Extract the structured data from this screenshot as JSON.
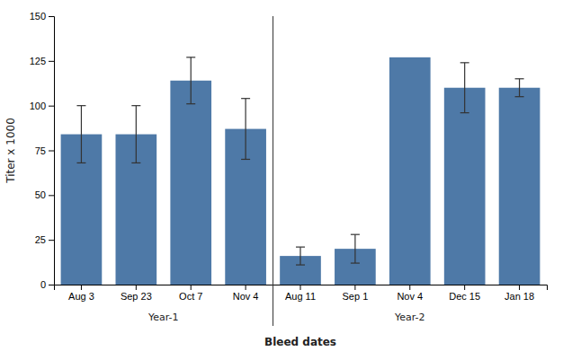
{
  "chart_data": {
    "type": "bar",
    "categories": [
      "Aug 3",
      "Sep 23",
      "Oct 7",
      "Nov 4",
      "Aug 11",
      "Sep 1",
      "Nov 4",
      "Dec 15",
      "Jan 18"
    ],
    "values": [
      84,
      84,
      114,
      87,
      16,
      20,
      127,
      110,
      110
    ],
    "errors": [
      16,
      16,
      13,
      17,
      5,
      8,
      0,
      14,
      5
    ],
    "xlabel": "Bleed dates",
    "ylabel": "Titer x 1000",
    "ylim": [
      0,
      150
    ],
    "yticks": [
      0,
      25,
      50,
      75,
      100,
      125,
      150
    ],
    "annotations": [
      "Year-1",
      "Year-2"
    ],
    "grid": false
  }
}
